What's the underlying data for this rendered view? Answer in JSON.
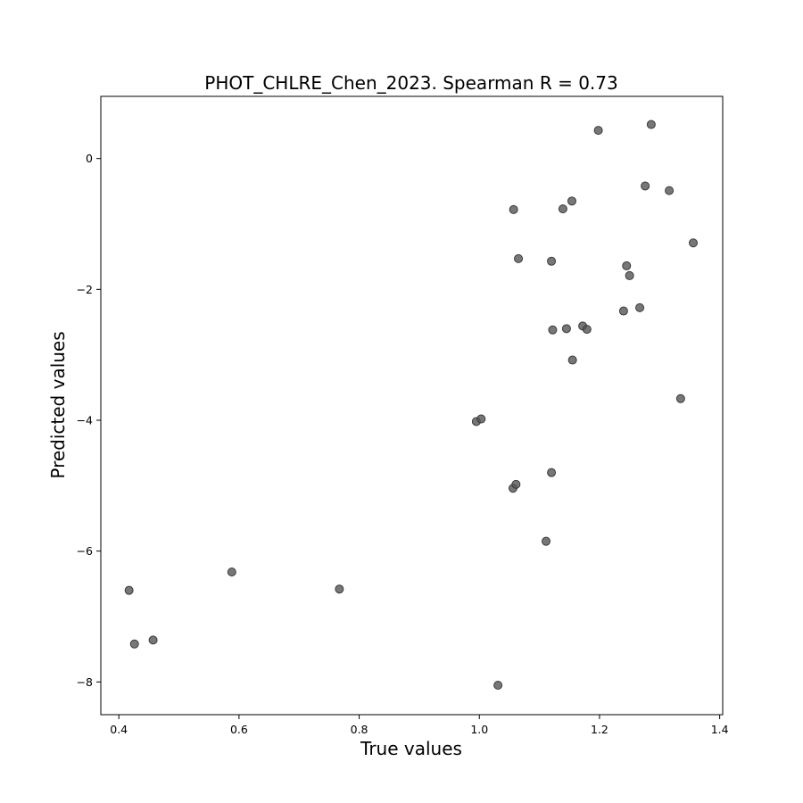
{
  "chart_data": {
    "type": "scatter",
    "title": "PHOT_CHLRE_Chen_2023. Spearman R = 0.73",
    "xlabel": "True values",
    "ylabel": "Predicted values",
    "xlim": [
      0.37,
      1.405
    ],
    "ylim": [
      -8.5,
      0.95
    ],
    "xticks": [
      0.4,
      0.6,
      0.8,
      1.0,
      1.2,
      1.4
    ],
    "xtick_labels": [
      "0.4",
      "0.6",
      "0.8",
      "1.0",
      "1.2",
      "1.4"
    ],
    "yticks": [
      0,
      -2,
      -4,
      -6,
      -8
    ],
    "ytick_labels": [
      "0",
      "−2",
      "−4",
      "−6",
      "−8"
    ],
    "grid": false,
    "marker_color": "#555555",
    "marker_edge_color": "#3a3a3a",
    "points": [
      {
        "x": 0.417,
        "y": -6.6
      },
      {
        "x": 0.426,
        "y": -7.42
      },
      {
        "x": 0.457,
        "y": -7.36
      },
      {
        "x": 0.588,
        "y": -6.32
      },
      {
        "x": 0.767,
        "y": -6.58
      },
      {
        "x": 0.995,
        "y": -4.02
      },
      {
        "x": 1.003,
        "y": -3.98
      },
      {
        "x": 1.031,
        "y": -8.05
      },
      {
        "x": 1.056,
        "y": -5.04
      },
      {
        "x": 1.057,
        "y": -0.78
      },
      {
        "x": 1.061,
        "y": -4.98
      },
      {
        "x": 1.065,
        "y": -1.53
      },
      {
        "x": 1.111,
        "y": -5.85
      },
      {
        "x": 1.12,
        "y": -4.8
      },
      {
        "x": 1.12,
        "y": -1.57
      },
      {
        "x": 1.122,
        "y": -2.62
      },
      {
        "x": 1.139,
        "y": -0.77
      },
      {
        "x": 1.145,
        "y": -2.6
      },
      {
        "x": 1.154,
        "y": -0.65
      },
      {
        "x": 1.155,
        "y": -3.08
      },
      {
        "x": 1.172,
        "y": -2.56
      },
      {
        "x": 1.179,
        "y": -2.61
      },
      {
        "x": 1.198,
        "y": 0.43
      },
      {
        "x": 1.24,
        "y": -2.33
      },
      {
        "x": 1.245,
        "y": -1.64
      },
      {
        "x": 1.25,
        "y": -1.79
      },
      {
        "x": 1.267,
        "y": -2.28
      },
      {
        "x": 1.276,
        "y": -0.42
      },
      {
        "x": 1.286,
        "y": 0.52
      },
      {
        "x": 1.316,
        "y": -0.49
      },
      {
        "x": 1.335,
        "y": -3.67
      },
      {
        "x": 1.356,
        "y": -1.29
      }
    ]
  }
}
